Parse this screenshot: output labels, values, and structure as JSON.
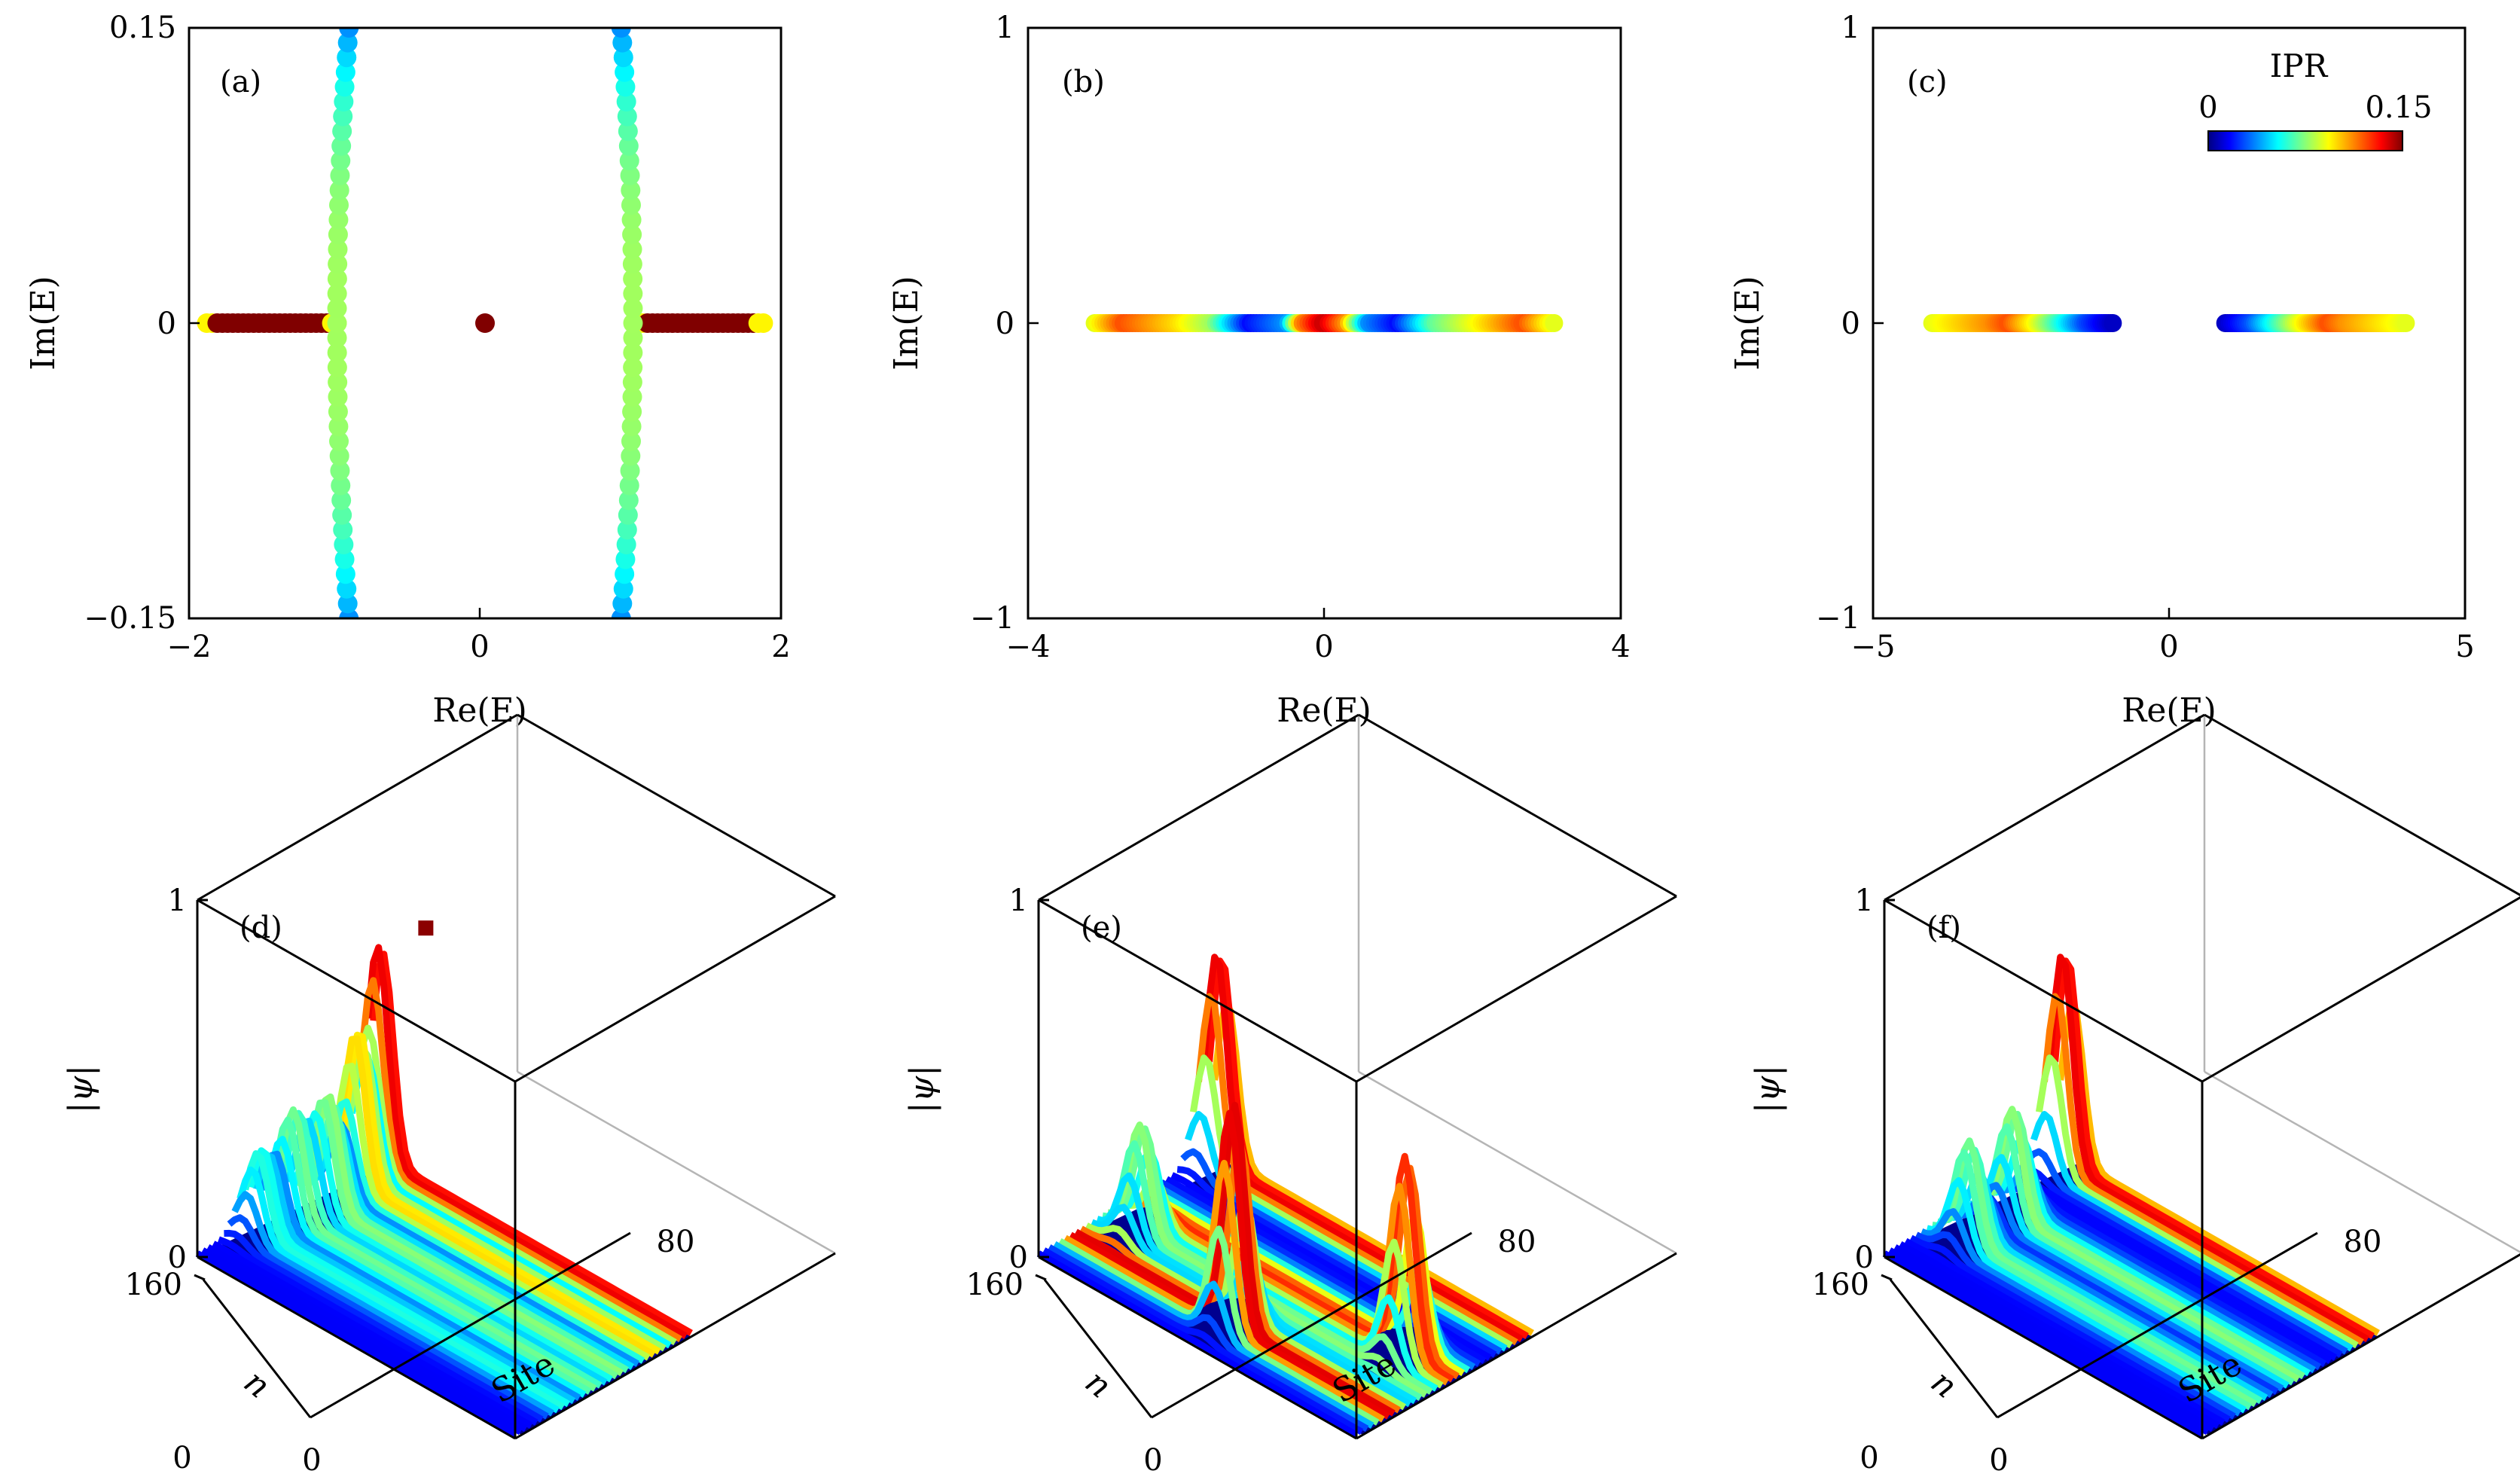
{
  "figure": {
    "description_free": true
  },
  "chart_data": [
    {
      "id": "a",
      "type": "scatter",
      "panel_label": "(a)",
      "xlabel": "Re(E)",
      "ylabel": "Im(E)",
      "xlim": [
        -2,
        2
      ],
      "ylim": [
        -0.15,
        0.15
      ],
      "xticks": [
        "−2",
        "0",
        "2"
      ],
      "xtick_values": [
        -2,
        0,
        2
      ],
      "yticks": [
        "−0.15",
        "0",
        "0.15"
      ],
      "ytick_values": [
        -0.15,
        0,
        0.15
      ],
      "colorbar": {
        "label": "IPR",
        "min": 0,
        "max": 0.15
      },
      "series": [
        {
          "name": "real band left",
          "x_from": -1.88,
          "x_to": -1.0,
          "y": 0,
          "count": 26,
          "ipr_edge": 0.095,
          "ipr_core": 0.15
        },
        {
          "name": "real band right",
          "x_from": 1.03,
          "x_to": 1.88,
          "y": 0,
          "count": 26,
          "ipr_edge": 0.095,
          "ipr_core": 0.15
        },
        {
          "name": "zero mode",
          "points": [
            [
              0,
              0
            ]
          ],
          "ipr": 0.15
        },
        {
          "name": "complex arc left",
          "x_at_zero": -1.0,
          "curvature": 0.08,
          "y_from": -0.15,
          "y_to": 0.15,
          "count": 41,
          "ipr_edge": 0.04,
          "ipr_core": 0.08
        },
        {
          "name": "complex arc right",
          "x_at_zero": 1.0,
          "curvature": -0.08,
          "y_from": -0.15,
          "y_to": 0.15,
          "count": 41,
          "ipr_edge": 0.04,
          "ipr_core": 0.08
        }
      ]
    },
    {
      "id": "b",
      "type": "scatter",
      "panel_label": "(b)",
      "xlabel": "Re(E)",
      "ylabel": "Im(E)",
      "xlim": [
        -4,
        4
      ],
      "ylim": [
        -1,
        1
      ],
      "xticks": [
        "−4",
        "0",
        "4"
      ],
      "xtick_values": [
        -4,
        0,
        4
      ],
      "yticks": [
        "−1",
        "0",
        "1"
      ],
      "ytick_values": [
        -1,
        0,
        1
      ],
      "series": [
        {
          "name": "real spectrum",
          "x_from": -3.1,
          "x_to": 3.1,
          "y": 0,
          "count": 160,
          "ipr_profile": [
            [
              -3.1,
              0.09
            ],
            [
              -2.7,
              0.12
            ],
            [
              -2.0,
              0.1
            ],
            [
              -1.5,
              0.08
            ],
            [
              -1.0,
              0.02
            ],
            [
              -0.5,
              0.04
            ],
            [
              -0.3,
              0.11
            ],
            [
              0.0,
              0.14
            ],
            [
              0.3,
              0.11
            ],
            [
              0.6,
              0.04
            ],
            [
              1.0,
              0.02
            ],
            [
              1.5,
              0.07
            ],
            [
              2.0,
              0.09
            ],
            [
              2.7,
              0.12
            ],
            [
              3.1,
              0.09
            ]
          ]
        }
      ]
    },
    {
      "id": "c",
      "type": "scatter",
      "panel_label": "(c)",
      "xlabel": "Re(E)",
      "ylabel": "Im(E)",
      "xlim": [
        -5,
        5
      ],
      "ylim": [
        -1,
        1
      ],
      "xticks": [
        "−5",
        "0",
        "5"
      ],
      "xtick_values": [
        -5,
        0,
        5
      ],
      "yticks": [
        "−1",
        "0",
        "1"
      ],
      "ytick_values": [
        -1,
        0,
        1
      ],
      "colorbar": {
        "label": "IPR",
        "min_label": "0",
        "max_label": "0.15",
        "min": 0,
        "max": 0.15
      },
      "series": [
        {
          "name": "left band",
          "x_from": -4.0,
          "x_to": -0.95,
          "y": 0,
          "count": 80,
          "ipr_profile": [
            [
              -4.0,
              0.09
            ],
            [
              -3.0,
              0.11
            ],
            [
              -2.7,
              0.12
            ],
            [
              -2.2,
              0.09
            ],
            [
              -1.8,
              0.06
            ],
            [
              -1.4,
              0.03
            ],
            [
              -0.95,
              0.01
            ]
          ]
        },
        {
          "name": "right band",
          "x_from": 0.95,
          "x_to": 4.0,
          "y": 0,
          "count": 80,
          "ipr_profile": [
            [
              0.95,
              0.01
            ],
            [
              1.4,
              0.03
            ],
            [
              1.8,
              0.06
            ],
            [
              2.2,
              0.09
            ],
            [
              2.7,
              0.12
            ],
            [
              3.0,
              0.11
            ],
            [
              4.0,
              0.09
            ]
          ]
        }
      ]
    },
    {
      "id": "d",
      "type": "surface3d",
      "panel_label": "(d)",
      "zlabel": "|ψ|",
      "ylabel": "n",
      "xlabel": "Site",
      "zticks": [
        "0",
        "1"
      ],
      "nticks": [
        "160",
        "0"
      ],
      "siteticks": [
        "0",
        "80"
      ],
      "peaks": [
        {
          "n_frac": 0.98,
          "site_frac": 0.03,
          "height": 0.6
        },
        {
          "n_frac": 0.8,
          "site_frac": 0.06,
          "height": 0.42
        },
        {
          "n_frac": 0.6,
          "site_frac": 0.08,
          "height": 0.3
        },
        {
          "n_frac": 0.45,
          "site_frac": 0.05,
          "height": 0.28
        },
        {
          "n_frac": 0.28,
          "site_frac": 0.04,
          "height": 0.22
        }
      ],
      "outlier": {
        "n_frac": 0.55,
        "site_frac": 0.55,
        "height": 0.72
      }
    },
    {
      "id": "e",
      "type": "surface3d",
      "panel_label": "(e)",
      "zlabel": "|ψ|",
      "ylabel": "n",
      "xlabel": "Site",
      "zticks": [
        "0",
        "1"
      ],
      "nticks": [
        "160"
      ],
      "siteticks": [
        "0",
        "80"
      ],
      "peaks": [
        {
          "n_frac": 0.95,
          "site_frac": 0.04,
          "height": 0.6
        },
        {
          "n_frac": 0.2,
          "site_frac": 0.5,
          "height": 0.62
        },
        {
          "n_frac": 0.4,
          "site_frac": 0.1,
          "height": 0.3
        },
        {
          "n_frac": 0.55,
          "site_frac": 0.85,
          "height": 0.55
        }
      ]
    },
    {
      "id": "f",
      "type": "surface3d",
      "panel_label": "(f)",
      "zlabel": "|ψ|",
      "ylabel": "n",
      "xlabel": "Site",
      "zticks": [
        "0",
        "1"
      ],
      "nticks": [
        "160",
        "0"
      ],
      "siteticks": [
        "0",
        "80"
      ],
      "peaks": [
        {
          "n_frac": 0.95,
          "site_frac": 0.04,
          "height": 0.6
        },
        {
          "n_frac": 0.55,
          "site_frac": 0.1,
          "height": 0.3
        },
        {
          "n_frac": 0.3,
          "site_frac": 0.1,
          "height": 0.28
        }
      ]
    }
  ]
}
